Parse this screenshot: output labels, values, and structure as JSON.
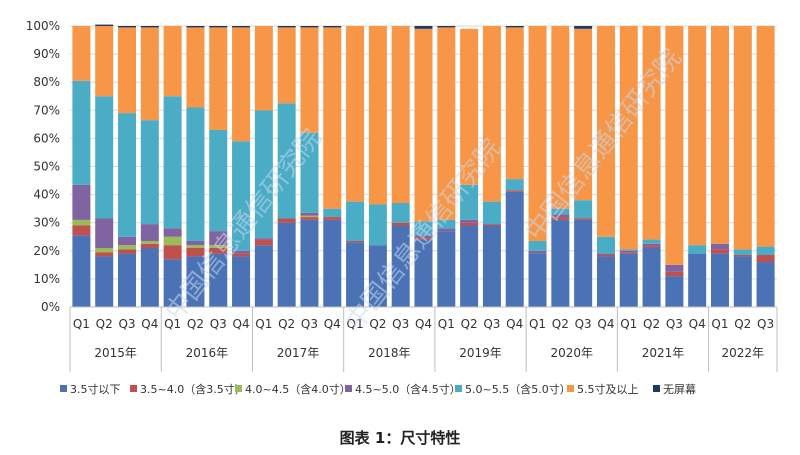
{
  "chart_data": {
    "type": "bar",
    "stacked": true,
    "percent": true,
    "ylim": [
      0,
      100
    ],
    "yticks": [
      "0%",
      "10%",
      "20%",
      "30%",
      "40%",
      "50%",
      "60%",
      "70%",
      "80%",
      "90%",
      "100%"
    ],
    "categories": [
      "Q1",
      "Q2",
      "Q3",
      "Q4",
      "Q1",
      "Q2",
      "Q3",
      "Q4",
      "Q1",
      "Q2",
      "Q3",
      "Q4",
      "Q1",
      "Q2",
      "Q3",
      "Q4",
      "Q1",
      "Q2",
      "Q3",
      "Q4",
      "Q1",
      "Q2",
      "Q3",
      "Q4",
      "Q1",
      "Q2",
      "Q3",
      "Q4",
      "Q1",
      "Q2",
      "Q3"
    ],
    "groups": [
      {
        "label": "2015年",
        "count": 4
      },
      {
        "label": "2016年",
        "count": 4
      },
      {
        "label": "2017年",
        "count": 4
      },
      {
        "label": "2018年",
        "count": 4
      },
      {
        "label": "2019年",
        "count": 4
      },
      {
        "label": "2020年",
        "count": 4
      },
      {
        "label": "2021年",
        "count": 4
      },
      {
        "label": "2022年",
        "count": 3
      }
    ],
    "series": [
      {
        "name": "3.5寸以下",
        "color": "#4a72b5",
        "values": [
          25.5,
          18,
          19,
          21,
          17,
          18,
          19,
          18,
          22,
          30,
          31,
          31,
          23,
          22,
          29,
          24,
          27,
          29,
          29,
          41,
          19,
          31,
          31,
          18,
          19,
          21,
          11,
          19,
          19,
          18,
          16
        ]
      },
      {
        "name": "3.5~4.0（含3.5寸）",
        "color": "#c0504d",
        "values": [
          3.5,
          1.5,
          1.5,
          1.5,
          5,
          3,
          2,
          1,
          2,
          1.5,
          1,
          1,
          0.5,
          0,
          1,
          0.5,
          0,
          1,
          0.5,
          0.5,
          0,
          1,
          0.5,
          0.5,
          0.5,
          0.5,
          1.5,
          0,
          1.5,
          0.5,
          2.5
        ]
      },
      {
        "name": "4.0~4.5（含4.0寸）",
        "color": "#9bbb59",
        "values": [
          2,
          1.5,
          1.5,
          1,
          3,
          1,
          1,
          0,
          0,
          0,
          0.5,
          0,
          0,
          0,
          0,
          0,
          0,
          0,
          0,
          0,
          0,
          0,
          0,
          0,
          0,
          0,
          0,
          0,
          0,
          0,
          0
        ]
      },
      {
        "name": "4.5~5.0（含4.5寸）",
        "color": "#8064a2",
        "values": [
          12.5,
          10.5,
          3,
          6,
          3,
          1.5,
          5,
          1,
          0.5,
          0,
          1,
          0,
          0,
          0,
          0,
          1,
          1,
          1,
          0,
          0,
          1,
          1,
          0,
          0.5,
          0.5,
          1,
          2.5,
          0,
          2,
          0,
          0
        ]
      },
      {
        "name": "5.0~5.5（含5.0寸）",
        "color": "#4bacc6",
        "values": [
          37,
          43.5,
          44,
          37,
          47,
          47.5,
          36,
          39,
          45.5,
          41,
          28.5,
          3,
          14,
          14.5,
          7,
          5,
          3,
          12.5,
          8,
          4,
          3.5,
          2,
          6.5,
          6,
          0.5,
          1.5,
          0,
          3,
          0,
          2,
          3
        ]
      },
      {
        "name": "5.5寸及以上",
        "color": "#f79646",
        "values": [
          19.5,
          25,
          30.5,
          33,
          25,
          28.5,
          36.5,
          40.5,
          30,
          27,
          37.5,
          64.5,
          62.5,
          63.5,
          63,
          68.5,
          68.5,
          55.5,
          62.5,
          54,
          76.5,
          65,
          61,
          75,
          79.5,
          76,
          85,
          78,
          77.5,
          79.5,
          78.5
        ]
      },
      {
        "name": "无屏幕",
        "color": "#1f3864",
        "values": [
          0,
          0.5,
          0.5,
          0.5,
          0,
          0.5,
          0.5,
          0.5,
          0,
          0.5,
          0.5,
          0.5,
          0,
          0,
          0,
          1,
          0.5,
          0,
          0,
          0.5,
          0,
          0,
          1,
          0,
          0,
          0,
          0,
          0,
          0,
          0,
          0
        ]
      }
    ]
  },
  "caption": "图表 1：尺寸特性",
  "watermark": "中国信息通信研究院"
}
